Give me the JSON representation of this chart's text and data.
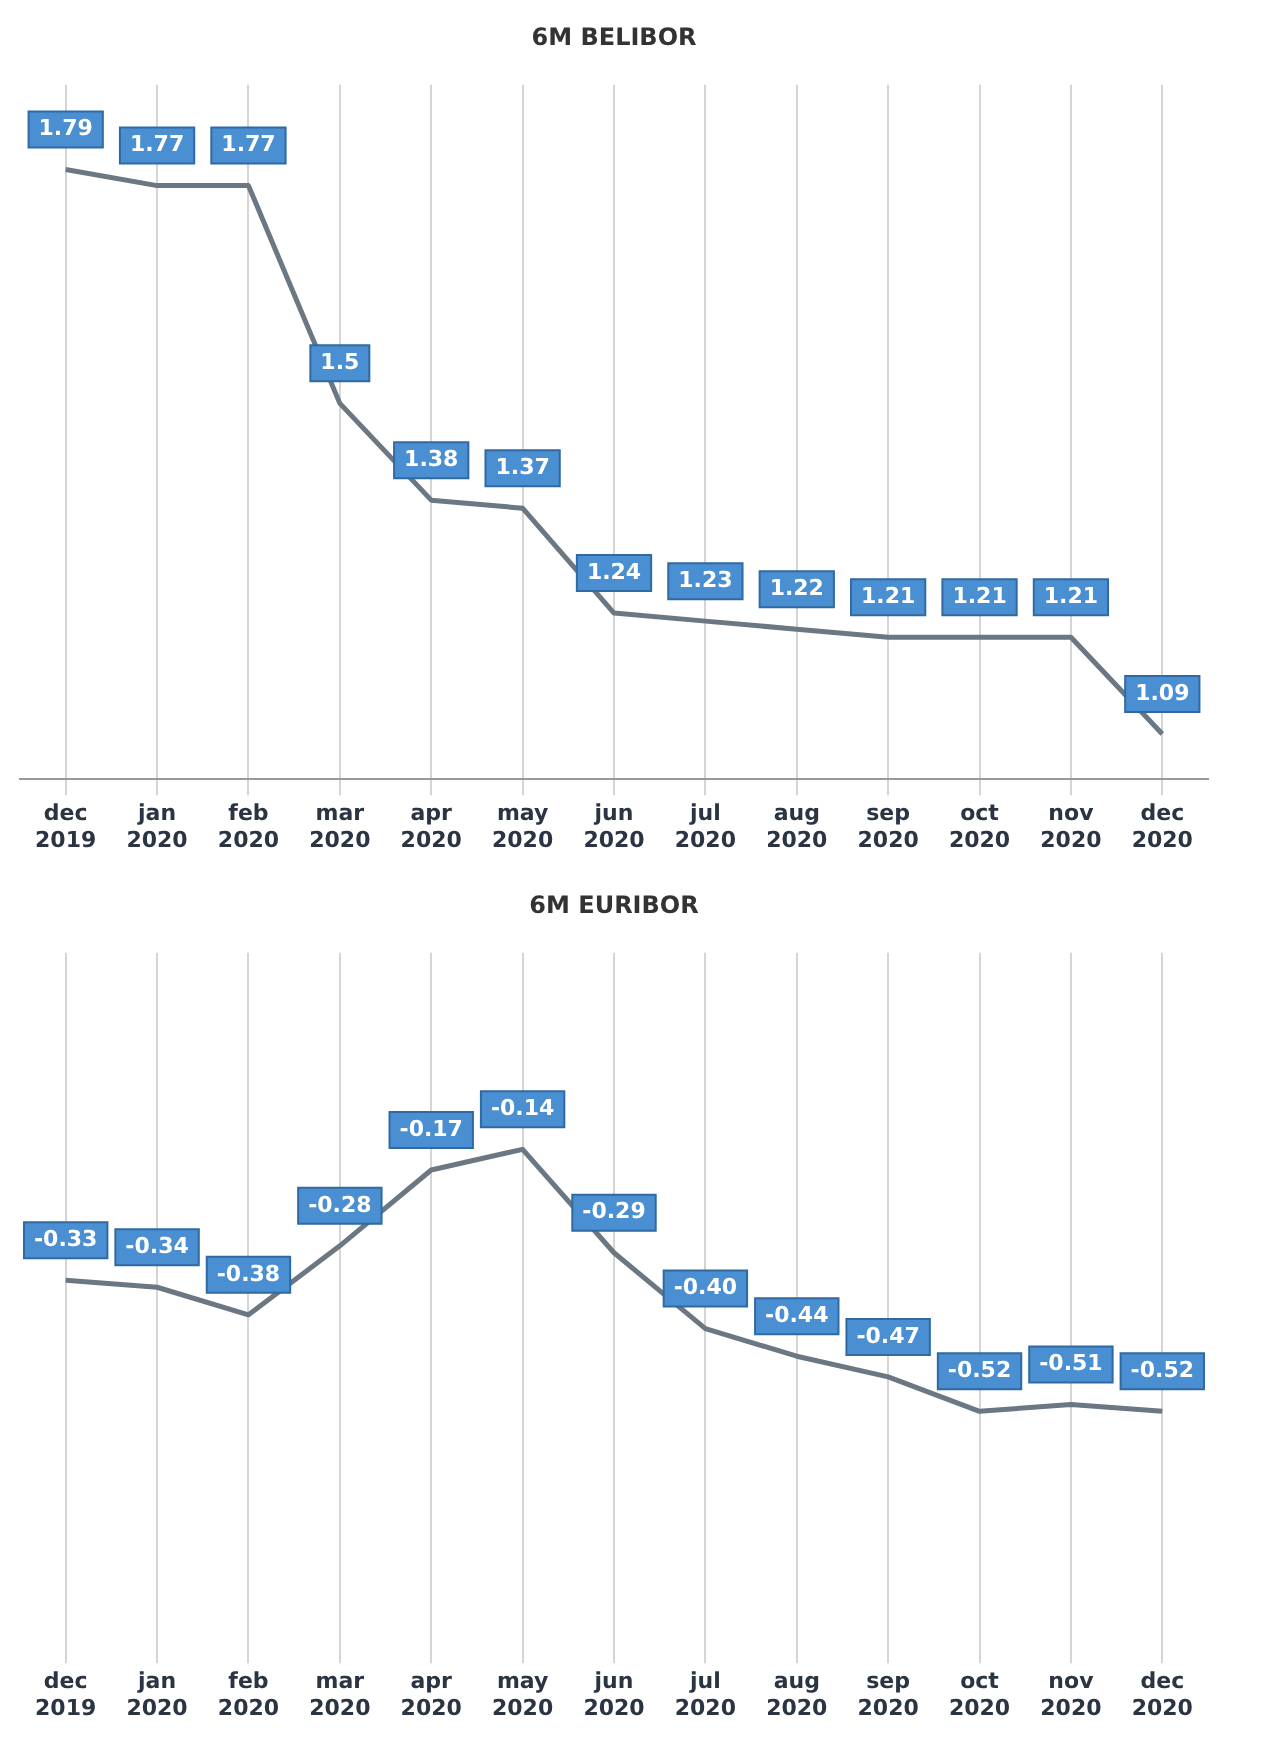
{
  "chart_data": [
    {
      "type": "line",
      "title": "6M BELIBOR",
      "categories": [
        "dec 2019",
        "jan 2020",
        "feb 2020",
        "mar 2020",
        "apr 2020",
        "may 2020",
        "jun 2020",
        "jul 2020",
        "aug 2020",
        "sep 2020",
        "oct 2020",
        "nov 2020",
        "dec 2020"
      ],
      "series": [
        {
          "color": "#6b7783",
          "values": [
            1.79,
            1.77,
            1.77,
            1.5,
            1.38,
            1.37,
            1.24,
            1.23,
            1.22,
            1.21,
            1.21,
            1.21,
            1.09
          ]
        }
      ],
      "data_labels": true,
      "grid": "x",
      "legend": false,
      "marker": "none",
      "line_style": "solid"
    },
    {
      "type": "line",
      "title": "6M EURIBOR",
      "categories": [
        "dec 2019",
        "jan 2020",
        "feb 2020",
        "mar 2020",
        "apr 2020",
        "may 2020",
        "jun 2020",
        "jul 2020",
        "aug 2020",
        "sep 2020",
        "oct 2020",
        "nov 2020",
        "dec 2020"
      ],
      "series": [
        {
          "color": "#6b7783",
          "values": [
            -0.33,
            -0.34,
            -0.38,
            -0.28,
            -0.17,
            -0.14,
            -0.29,
            -0.4,
            -0.44,
            -0.47,
            -0.52,
            -0.51,
            -0.52
          ],
          "value_labels": [
            "-0.33",
            "-0.34",
            "-0.38",
            "-0.28",
            "-0.17",
            "-0.14",
            "-0.29",
            "-0.40",
            "-0.44",
            "-0.47",
            "-0.52",
            "-0.51",
            "-0.52"
          ]
        }
      ],
      "grid": "x",
      "legend": false,
      "marker": "none",
      "line_style": "solid"
    }
  ]
}
